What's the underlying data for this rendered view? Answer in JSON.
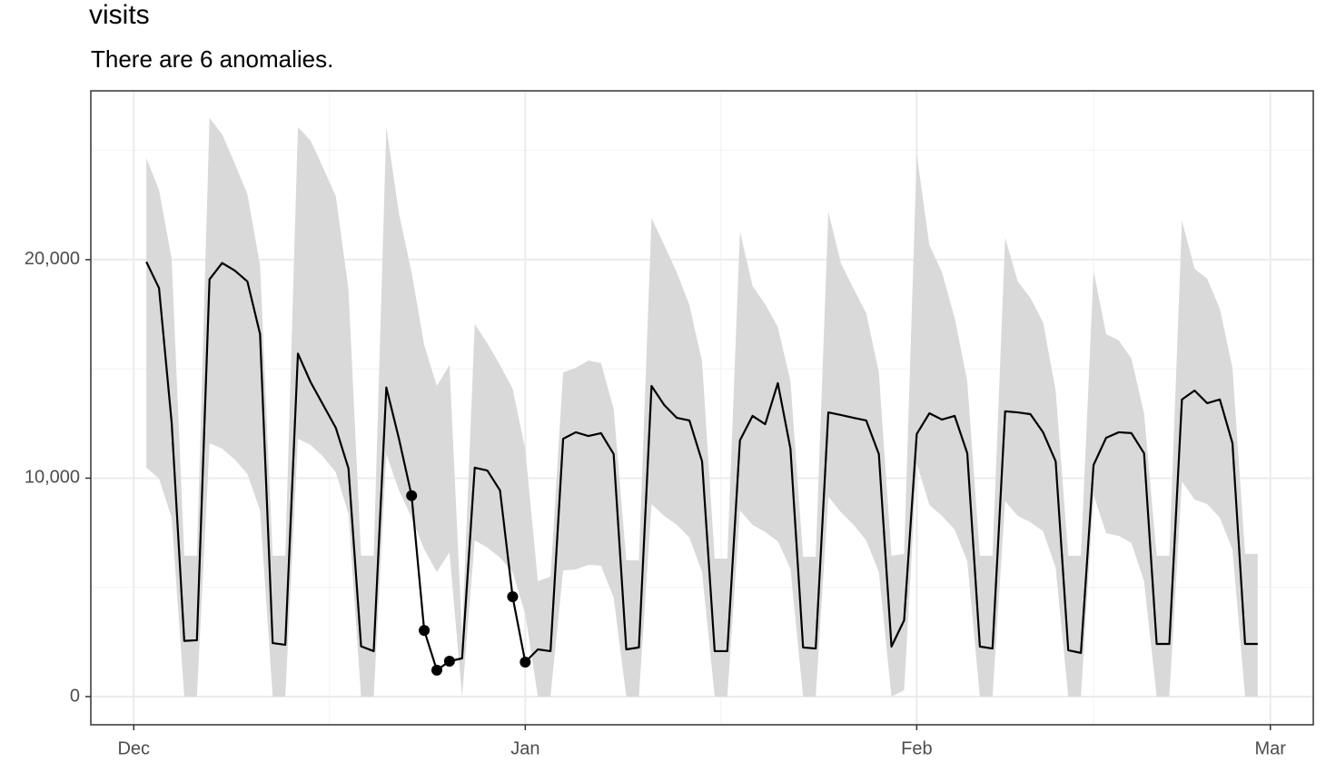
{
  "chart_data": {
    "type": "line",
    "title": "visits",
    "subtitle": "There are 6 anomalies.",
    "x": [
      1,
      2,
      3,
      4,
      5,
      6,
      7,
      8,
      9,
      10,
      11,
      12,
      13,
      14,
      15,
      16,
      17,
      18,
      19,
      20,
      21,
      22,
      23,
      24,
      25,
      26,
      27,
      28,
      29,
      30,
      31,
      32,
      33,
      34,
      35,
      36,
      37,
      38,
      39,
      40,
      41,
      42,
      43,
      44,
      45,
      46,
      47,
      48,
      49,
      50,
      51,
      52,
      53,
      54,
      55,
      56,
      57,
      58,
      59,
      60,
      61,
      62,
      63,
      64,
      65,
      66,
      67,
      68,
      69,
      70,
      71,
      72,
      73,
      74,
      75,
      76,
      77,
      78,
      79,
      80,
      81,
      82,
      83,
      84,
      85,
      86,
      87,
      88,
      89
    ],
    "values": [
      19900,
      18700,
      12550,
      2550,
      2580,
      19100,
      19850,
      19500,
      19000,
      16600,
      2450,
      2370,
      15700,
      14400,
      13350,
      12300,
      10450,
      2300,
      2080,
      14150,
      11800,
      9200,
      3030,
      1210,
      1620,
      1750,
      10480,
      10350,
      9440,
      4570,
      1580,
      2160,
      2080,
      11800,
      12100,
      11930,
      12060,
      11100,
      2160,
      2250,
      14220,
      13350,
      12760,
      12640,
      10770,
      2080,
      2080,
      11730,
      12850,
      12470,
      14350,
      11350,
      2250,
      2200,
      13010,
      12890,
      12760,
      12640,
      11100,
      2290,
      3490,
      12020,
      12970,
      12680,
      12850,
      11140,
      2290,
      2200,
      13060,
      13010,
      12930,
      12100,
      10770,
      2120,
      2000,
      10600,
      11850,
      12100,
      12060,
      11140,
      2410,
      2410,
      13600,
      14010,
      13430,
      13600,
      11600,
      2410,
      2410
    ],
    "color": "#000000",
    "band": {
      "color": "#d9d9d9",
      "upper": [
        24650,
        23200,
        20040,
        6450,
        6450,
        26490,
        25740,
        24400,
        23000,
        19750,
        6450,
        6450,
        26070,
        25450,
        24200,
        22900,
        18670,
        6450,
        6450,
        26070,
        22120,
        19420,
        16090,
        14220,
        15180,
        2790,
        17050,
        16170,
        15180,
        14100,
        11310,
        5280,
        5490,
        14840,
        15050,
        15380,
        15260,
        13180,
        6240,
        6240,
        21910,
        20670,
        19420,
        17920,
        15340,
        6320,
        6320,
        21290,
        18790,
        17960,
        16920,
        14430,
        6400,
        6400,
        22200,
        19830,
        18670,
        17550,
        14840,
        6450,
        6530,
        24820,
        20670,
        19420,
        17340,
        14430,
        6450,
        6450,
        21000,
        19000,
        18250,
        17130,
        14010,
        6450,
        6450,
        19500,
        16590,
        16300,
        15470,
        12970,
        6450,
        6450,
        21790,
        19580,
        19130,
        17750,
        15050,
        6530,
        6530
      ],
      "lower": [
        10480,
        9980,
        8190,
        0,
        0,
        11600,
        11350,
        10850,
        10190,
        8520,
        0,
        0,
        11800,
        11520,
        10980,
        10270,
        8360,
        0,
        0,
        11100,
        9440,
        8190,
        6740,
        5700,
        6610,
        0,
        7150,
        6820,
        6360,
        5700,
        3780,
        0,
        0,
        5780,
        5820,
        6030,
        5990,
        4530,
        0,
        0,
        8810,
        8270,
        7860,
        7280,
        5700,
        0,
        0,
        8520,
        7860,
        7530,
        7110,
        5860,
        0,
        0,
        9150,
        8440,
        7860,
        7150,
        5700,
        0,
        290,
        10690,
        8770,
        8270,
        7650,
        6200,
        0,
        0,
        8940,
        8270,
        7980,
        7570,
        5900,
        0,
        0,
        9230,
        7480,
        7360,
        7030,
        5280,
        0,
        0,
        9850,
        9020,
        8810,
        8190,
        6740,
        0,
        0
      ]
    },
    "anomalies": {
      "color": "#000000",
      "x": [
        22,
        23,
        24,
        25,
        30,
        31
      ],
      "values": [
        9200,
        3030,
        1210,
        1620,
        4570,
        1580
      ]
    },
    "xlim": [
      -3.4,
      93.4
    ],
    "xticks": [
      {
        "value": 0,
        "label": "Dec"
      },
      {
        "value": 31,
        "label": "Jan"
      },
      {
        "value": 62,
        "label": "Feb"
      },
      {
        "value": 90,
        "label": "Mar"
      }
    ],
    "x_minor_ticks": [
      15.5,
      46.5,
      76
    ],
    "ylim": [
      -1290,
      27730
    ],
    "yticks": [
      0,
      {
        "value": 10000,
        "label": "10,000"
      },
      {
        "value": 20000,
        "label": "20,000"
      }
    ],
    "y_minor_ticks": [
      5000,
      15000,
      25000
    ],
    "grid": true
  }
}
